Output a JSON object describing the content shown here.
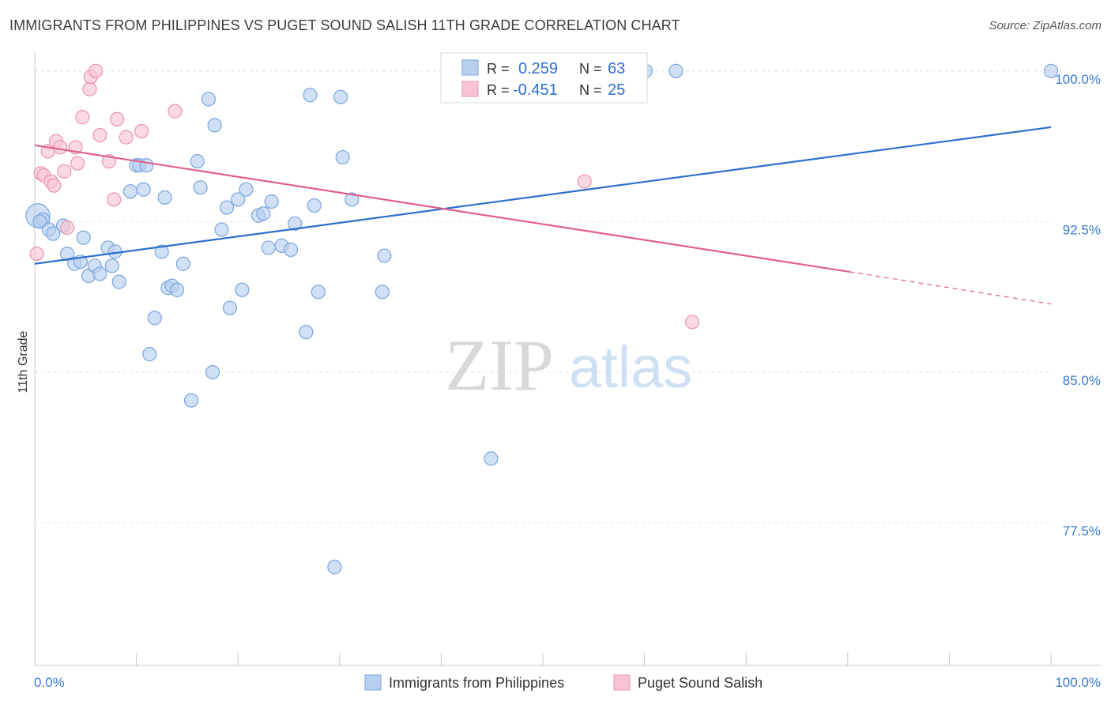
{
  "chart_data": {
    "type": "scatter",
    "title": "IMMIGRANTS FROM PHILIPPINES VS PUGET SOUND SALISH 11TH GRADE CORRELATION CHART",
    "source": "Source: ZipAtlas.com",
    "xlabel": "",
    "ylabel": "11th Grade",
    "xlim": [
      0,
      100
    ],
    "ylim": [
      70.4,
      100.7
    ],
    "x_tick_labels": [
      "0.0%",
      "100.0%"
    ],
    "y_ticks": [
      77.5,
      85.0,
      92.5,
      100.0
    ],
    "y_tick_labels": [
      "77.5%",
      "85.0%",
      "92.5%",
      "100.0%"
    ],
    "grid": true,
    "watermark": {
      "zip": "ZIP",
      "atlas": "atlas"
    },
    "legend_stats": [
      {
        "r_label": "R =",
        "r_value": "0.259",
        "n_label": "N =",
        "n_value": "63"
      },
      {
        "r_label": "R =",
        "r_value": "-0.451",
        "n_label": "N =",
        "n_value": "25"
      }
    ],
    "colors": {
      "blue_fill": "#b8d0f0",
      "blue_stroke": "#7aa6de",
      "blue_line": "#2e6fcc",
      "pink_fill": "#f8c4d4",
      "pink_stroke": "#eb93b0",
      "pink_line": "#e0608c",
      "axis_text": "#3a7bd5",
      "grid": "#e4e4e4"
    },
    "series": [
      {
        "name": "Immigrants from Philippines",
        "trend": {
          "x0": 0,
          "y0": 90.4,
          "x1": 100,
          "y1": 97.2
        },
        "points": [
          [
            0.3,
            92.8
          ],
          [
            0.8,
            92.6
          ],
          [
            0.5,
            92.5
          ],
          [
            1.4,
            92.1
          ],
          [
            1.8,
            91.9
          ],
          [
            2.8,
            92.3
          ],
          [
            3.2,
            90.9
          ],
          [
            3.9,
            90.4
          ],
          [
            4.5,
            90.5
          ],
          [
            4.8,
            91.7
          ],
          [
            5.3,
            89.8
          ],
          [
            5.9,
            90.3
          ],
          [
            6.4,
            89.9
          ],
          [
            7.2,
            91.2
          ],
          [
            7.6,
            90.3
          ],
          [
            7.9,
            91.0
          ],
          [
            8.3,
            89.5
          ],
          [
            10.0,
            95.3
          ],
          [
            9.4,
            94.0
          ],
          [
            10.3,
            95.3
          ],
          [
            10.7,
            94.1
          ],
          [
            11.0,
            95.3
          ],
          [
            11.3,
            85.9
          ],
          [
            11.8,
            87.7
          ],
          [
            12.5,
            91.0
          ],
          [
            12.8,
            93.7
          ],
          [
            13.1,
            89.2
          ],
          [
            13.5,
            89.3
          ],
          [
            14.0,
            89.1
          ],
          [
            14.6,
            90.4
          ],
          [
            15.4,
            83.6
          ],
          [
            16.0,
            95.5
          ],
          [
            16.3,
            94.2
          ],
          [
            17.1,
            98.6
          ],
          [
            17.5,
            85.0
          ],
          [
            17.7,
            97.3
          ],
          [
            18.4,
            92.1
          ],
          [
            18.9,
            93.2
          ],
          [
            19.2,
            88.2
          ],
          [
            20.0,
            93.6
          ],
          [
            20.4,
            89.1
          ],
          [
            20.8,
            94.1
          ],
          [
            22.0,
            92.8
          ],
          [
            22.5,
            92.9
          ],
          [
            23.0,
            91.2
          ],
          [
            23.3,
            93.5
          ],
          [
            24.3,
            91.3
          ],
          [
            25.2,
            91.1
          ],
          [
            25.6,
            92.4
          ],
          [
            26.7,
            87.0
          ],
          [
            27.1,
            98.8
          ],
          [
            27.5,
            93.3
          ],
          [
            27.9,
            89.0
          ],
          [
            29.5,
            75.3
          ],
          [
            30.1,
            98.7
          ],
          [
            30.3,
            95.7
          ],
          [
            31.2,
            93.6
          ],
          [
            34.2,
            89.0
          ],
          [
            34.4,
            90.8
          ],
          [
            44.9,
            80.7
          ],
          [
            60.1,
            100.0
          ],
          [
            63.1,
            100.0
          ],
          [
            100.0,
            100.0
          ]
        ]
      },
      {
        "name": "Puget Sound Salish",
        "trend": {
          "x0": 0,
          "y0": 96.3,
          "x1": 80.2,
          "y1": 90.0,
          "x2": 100,
          "y2": 88.4
        },
        "points": [
          [
            0.2,
            90.9
          ],
          [
            0.6,
            94.9
          ],
          [
            0.9,
            94.8
          ],
          [
            1.3,
            96.0
          ],
          [
            1.6,
            94.5
          ],
          [
            1.9,
            94.3
          ],
          [
            2.1,
            96.5
          ],
          [
            2.5,
            96.2
          ],
          [
            2.9,
            95.0
          ],
          [
            3.2,
            92.2
          ],
          [
            4.0,
            96.2
          ],
          [
            4.2,
            95.4
          ],
          [
            4.7,
            97.7
          ],
          [
            5.4,
            99.1
          ],
          [
            5.5,
            99.7
          ],
          [
            6.0,
            100.0
          ],
          [
            6.4,
            96.8
          ],
          [
            7.3,
            95.5
          ],
          [
            7.8,
            93.6
          ],
          [
            8.1,
            97.6
          ],
          [
            9.0,
            96.7
          ],
          [
            10.5,
            97.0
          ],
          [
            13.8,
            98.0
          ],
          [
            54.1,
            94.5
          ],
          [
            64.7,
            87.5
          ]
        ]
      }
    ]
  }
}
